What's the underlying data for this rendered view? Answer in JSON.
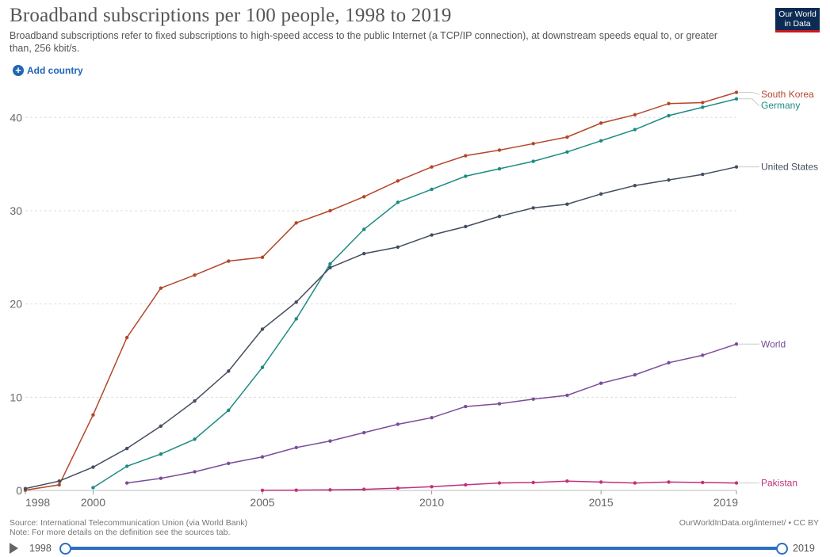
{
  "title": "Broadband subscriptions per 100 people, 1998 to 2019",
  "subtitle": "Broadband subscriptions refer to fixed subscriptions to high-speed access to the public Internet (a TCP/IP connection), at downstream speeds equal to, or greater than, 256 kbit/s.",
  "logo": {
    "line1": "Our World",
    "line2": "in Data"
  },
  "add_country": "Add country",
  "source": "Source: International Telecommunication Union (via World Bank)",
  "note": "Note: For more details on the definition see the sources tab.",
  "url_license": "OurWorldInData.org/internet/ • CC BY",
  "timeline": {
    "start": "1998",
    "end": "2019"
  },
  "chart_data": {
    "type": "line",
    "title": "Broadband subscriptions per 100 people, 1998 to 2019",
    "xlabel": "",
    "ylabel": "",
    "xlim": [
      1998,
      2019
    ],
    "ylim": [
      0,
      43
    ],
    "y_ticks": [
      0,
      10,
      20,
      30,
      40
    ],
    "x_ticks": [
      1998,
      2000,
      2005,
      2010,
      2015,
      2019
    ],
    "grid": "horizontal dashed",
    "legend": "right, inline labels at line ends",
    "series": [
      {
        "name": "South Korea",
        "color": "#b5462a",
        "points": [
          [
            1998,
            0.03
          ],
          [
            1999,
            0.6
          ],
          [
            2000,
            8.1
          ],
          [
            2001,
            16.4
          ],
          [
            2002,
            21.7
          ],
          [
            2003,
            23.1
          ],
          [
            2004,
            24.6
          ],
          [
            2005,
            25.0
          ],
          [
            2006,
            28.7
          ],
          [
            2007,
            30.0
          ],
          [
            2008,
            31.5
          ],
          [
            2009,
            33.2
          ],
          [
            2010,
            34.7
          ],
          [
            2011,
            35.9
          ],
          [
            2012,
            36.5
          ],
          [
            2013,
            37.2
          ],
          [
            2014,
            37.9
          ],
          [
            2015,
            39.4
          ],
          [
            2016,
            40.3
          ],
          [
            2017,
            41.5
          ],
          [
            2018,
            41.6
          ],
          [
            2019,
            42.7
          ]
        ]
      },
      {
        "name": "Germany",
        "color": "#1d8b82",
        "points": [
          [
            2000,
            0.3
          ],
          [
            2001,
            2.6
          ],
          [
            2002,
            3.9
          ],
          [
            2003,
            5.5
          ],
          [
            2004,
            8.6
          ],
          [
            2005,
            13.2
          ],
          [
            2006,
            18.4
          ],
          [
            2007,
            24.3
          ],
          [
            2008,
            28.0
          ],
          [
            2009,
            30.9
          ],
          [
            2010,
            32.3
          ],
          [
            2011,
            33.7
          ],
          [
            2012,
            34.5
          ],
          [
            2013,
            35.3
          ],
          [
            2014,
            36.3
          ],
          [
            2015,
            37.5
          ],
          [
            2016,
            38.7
          ],
          [
            2017,
            40.2
          ],
          [
            2018,
            41.1
          ],
          [
            2019,
            42.0
          ]
        ]
      },
      {
        "name": "United States",
        "color": "#444e5e",
        "points": [
          [
            1998,
            0.2
          ],
          [
            1999,
            1.0
          ],
          [
            2000,
            2.5
          ],
          [
            2001,
            4.5
          ],
          [
            2002,
            6.9
          ],
          [
            2003,
            9.6
          ],
          [
            2004,
            12.8
          ],
          [
            2005,
            17.3
          ],
          [
            2006,
            20.2
          ],
          [
            2007,
            23.9
          ],
          [
            2008,
            25.4
          ],
          [
            2009,
            26.1
          ],
          [
            2010,
            27.4
          ],
          [
            2011,
            28.3
          ],
          [
            2012,
            29.4
          ],
          [
            2013,
            30.3
          ],
          [
            2014,
            30.7
          ],
          [
            2015,
            31.8
          ],
          [
            2016,
            32.7
          ],
          [
            2017,
            33.3
          ],
          [
            2018,
            33.9
          ],
          [
            2019,
            34.7
          ]
        ]
      },
      {
        "name": "World",
        "color": "#7a4d9a",
        "points": [
          [
            2001,
            0.8
          ],
          [
            2002,
            1.3
          ],
          [
            2003,
            2.0
          ],
          [
            2004,
            2.9
          ],
          [
            2005,
            3.6
          ],
          [
            2006,
            4.6
          ],
          [
            2007,
            5.3
          ],
          [
            2008,
            6.2
          ],
          [
            2009,
            7.1
          ],
          [
            2010,
            7.8
          ],
          [
            2011,
            9.0
          ],
          [
            2012,
            9.3
          ],
          [
            2013,
            9.8
          ],
          [
            2014,
            10.2
          ],
          [
            2015,
            11.5
          ],
          [
            2016,
            12.4
          ],
          [
            2017,
            13.7
          ],
          [
            2018,
            14.5
          ],
          [
            2019,
            15.7
          ]
        ]
      },
      {
        "name": "Pakistan",
        "color": "#c0307a",
        "points": [
          [
            2005,
            0.02
          ],
          [
            2006,
            0.03
          ],
          [
            2007,
            0.06
          ],
          [
            2008,
            0.12
          ],
          [
            2009,
            0.25
          ],
          [
            2010,
            0.4
          ],
          [
            2011,
            0.6
          ],
          [
            2012,
            0.8
          ],
          [
            2013,
            0.85
          ],
          [
            2014,
            1.0
          ],
          [
            2015,
            0.9
          ],
          [
            2016,
            0.8
          ],
          [
            2017,
            0.9
          ],
          [
            2018,
            0.85
          ],
          [
            2019,
            0.8
          ]
        ]
      }
    ]
  }
}
